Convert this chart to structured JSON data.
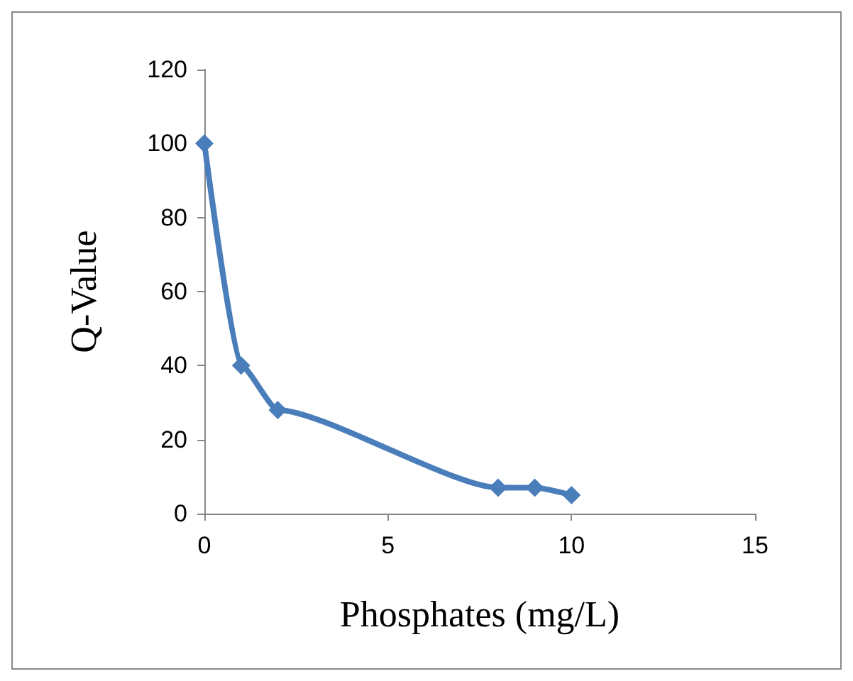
{
  "chart_data": {
    "type": "line",
    "xlabel": "Phosphates (mg/L)",
    "ylabel": "Q-Value",
    "x": [
      0,
      1,
      2,
      8,
      9,
      10
    ],
    "series": [
      {
        "color": "#4a7ebb",
        "values": [
          100,
          40,
          28,
          7,
          7,
          5
        ]
      }
    ],
    "xlim": [
      0,
      15
    ],
    "xticks": [
      0,
      5,
      10,
      15
    ],
    "ylim": [
      0,
      120
    ],
    "yticks": [
      0,
      20,
      40,
      60,
      80,
      100,
      120
    ],
    "grid": false,
    "marker": "diamond",
    "line_style": "solid"
  }
}
